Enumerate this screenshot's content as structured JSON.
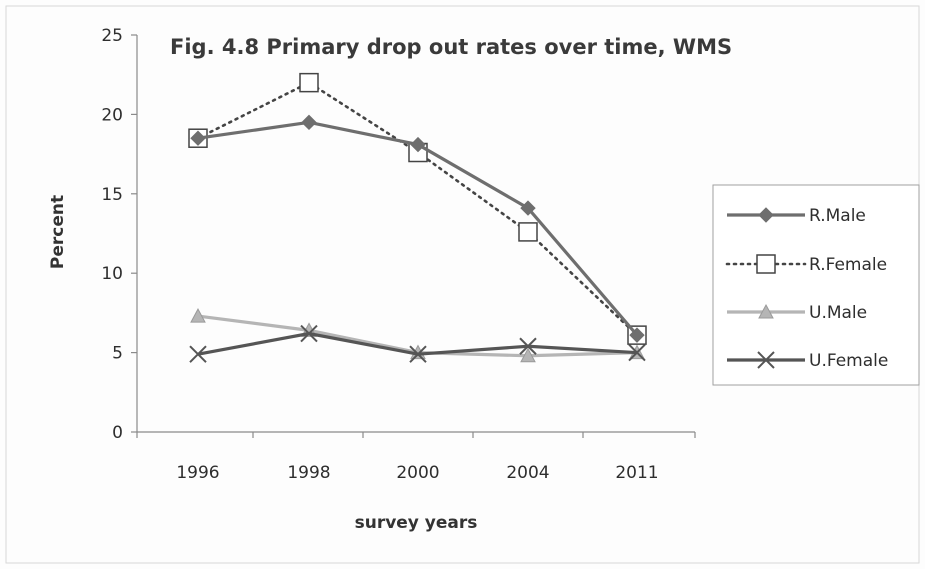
{
  "chart_data": {
    "type": "line",
    "title": "Fig. 4.8 Primary drop out rates over time, WMS",
    "xlabel": "survey years",
    "ylabel": "Percent",
    "categories": [
      "1996",
      "1998",
      "2000",
      "2004",
      "2011"
    ],
    "ylim": [
      0,
      25
    ],
    "yticks": [
      0,
      5,
      10,
      15,
      20,
      25
    ],
    "grid": false,
    "legend_position": "right",
    "series": [
      {
        "name": "R.Male",
        "values": [
          18.5,
          19.5,
          18.1,
          14.1,
          6.1
        ],
        "color": "#6e6e6e",
        "line": "solid",
        "marker": "diamond"
      },
      {
        "name": "R.Female",
        "values": [
          18.5,
          22.0,
          17.6,
          12.6,
          6.1
        ],
        "color": "#444444",
        "line": "dotted",
        "marker": "square-open"
      },
      {
        "name": "U.Male",
        "values": [
          7.3,
          6.4,
          5.0,
          4.8,
          5.0
        ],
        "color": "#b5b5b5",
        "line": "solid",
        "marker": "triangle"
      },
      {
        "name": "U.Female",
        "values": [
          4.9,
          6.2,
          4.9,
          5.4,
          5.0
        ],
        "color": "#555555",
        "line": "solid",
        "marker": "x"
      }
    ]
  }
}
